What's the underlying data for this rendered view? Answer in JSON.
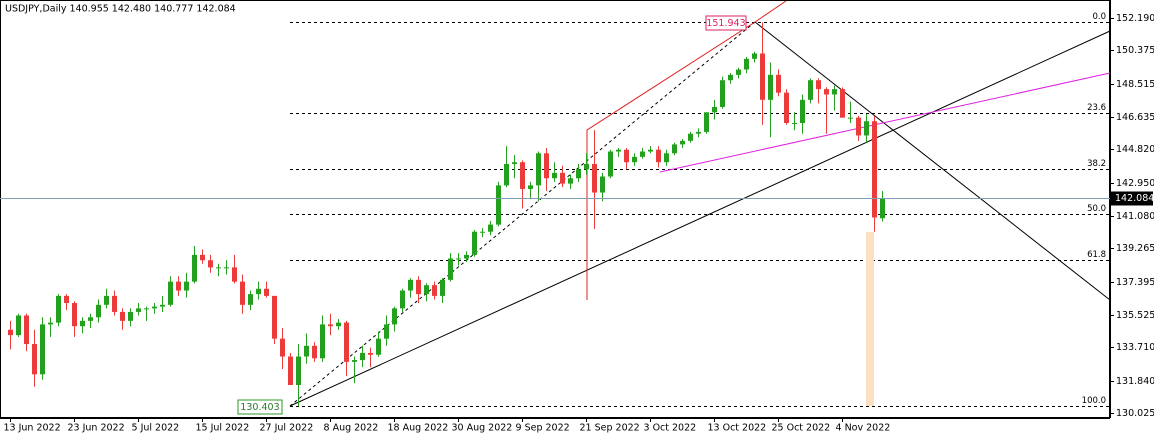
{
  "chart_data": {
    "type": "candlestick",
    "title": "USDJPY,Daily  140.955 142.480 140.777 142.084",
    "categories": [
      "13 Jun 2022",
      null,
      null,
      null,
      null,
      null,
      null,
      null,
      "23 Jun 2022",
      null,
      null,
      null,
      null,
      null,
      null,
      null,
      "5 Jul 2022",
      null,
      null,
      null,
      null,
      null,
      null,
      null,
      "15 Jul 2022",
      null,
      null,
      null,
      null,
      null,
      null,
      null,
      "27 Jul 2022",
      null,
      null,
      null,
      null,
      null,
      null,
      null,
      "8 Aug 2022",
      null,
      null,
      null,
      null,
      null,
      null,
      null,
      "18 Aug 2022",
      null,
      null,
      null,
      null,
      null,
      null,
      null,
      "30 Aug 2022",
      null,
      null,
      null,
      null,
      null,
      null,
      null,
      "9 Sep 2022",
      null,
      null,
      null,
      null,
      null,
      null,
      null,
      "21 Sep 2022",
      null,
      null,
      null,
      null,
      null,
      null,
      null,
      "3 Oct 2022",
      null,
      null,
      null,
      null,
      null,
      null,
      null,
      "13 Oct 2022",
      null,
      null,
      null,
      null,
      null,
      null,
      null,
      "25 Oct 2022",
      null,
      null,
      null,
      null,
      null,
      null,
      null,
      "4 Nov 2022",
      null,
      null,
      null,
      null,
      null
    ],
    "open": [
      134.7,
      134.4,
      135.5,
      133.9,
      132.2,
      135.0,
      135.1,
      136.6,
      136.2,
      134.9,
      135.2,
      135.4,
      136.1,
      136.6,
      135.7,
      135.2,
      135.7,
      135.9,
      135.9,
      136.0,
      136.1,
      137.4,
      136.9,
      137.4,
      138.9,
      138.6,
      138.2,
      138.2,
      138.2,
      137.4,
      136.1,
      136.7,
      137.0,
      136.6,
      134.2,
      133.2,
      131.6,
      133.2,
      133.8,
      133.1,
      135.0,
      134.9,
      135.1,
      132.9,
      133.0,
      133.4,
      133.3,
      134.2,
      135.0,
      135.9,
      136.9,
      137.5,
      136.7,
      137.2,
      136.6,
      137.5,
      138.7,
      138.7,
      138.9,
      140.2,
      140.2,
      140.6,
      142.8,
      144.0,
      144.1,
      142.6,
      142.8,
      144.6,
      143.2,
      143.5,
      142.9,
      143.2,
      143.7,
      144.0,
      142.4,
      143.3,
      144.7,
      144.8,
      144.1,
      144.4,
      144.7,
      144.8,
      144.1,
      144.6,
      145.1,
      145.3,
      145.7,
      145.8,
      146.9,
      147.2,
      148.7,
      149.0,
      149.3,
      149.9,
      150.2,
      147.6,
      149.0,
      148.0,
      146.3,
      146.3,
      147.6,
      148.7,
      148.2,
      147.9,
      148.2,
      146.6,
      146.6,
      145.6,
      146.4,
      140.955
    ],
    "high": [
      135.2,
      135.6,
      135.6,
      134.7,
      135.4,
      135.4,
      136.7,
      136.7,
      136.3,
      135.4,
      135.6,
      136.4,
      137.0,
      136.9,
      135.9,
      135.9,
      136.2,
      136.0,
      136.2,
      136.6,
      137.7,
      137.7,
      137.9,
      139.4,
      139.2,
      138.9,
      138.4,
      138.6,
      138.9,
      137.8,
      136.9,
      137.4,
      137.4,
      136.6,
      134.8,
      133.4,
      133.9,
      134.5,
      134.0,
      135.5,
      135.6,
      135.3,
      135.2,
      133.2,
      133.8,
      133.7,
      134.6,
      135.5,
      136.0,
      137.0,
      137.6,
      137.7,
      137.3,
      137.4,
      137.6,
      139.0,
      139.0,
      139.1,
      140.3,
      140.4,
      140.8,
      143.0,
      145.0,
      144.5,
      144.2,
      143.0,
      144.7,
      144.9,
      144.1,
      143.9,
      143.4,
      144.0,
      144.6,
      145.9,
      143.5,
      144.8,
      144.9,
      144.9,
      144.6,
      144.9,
      145.0,
      145.0,
      144.8,
      145.2,
      145.4,
      145.8,
      146.0,
      146.9,
      147.6,
      148.9,
      149.1,
      149.4,
      150.0,
      150.3,
      151.943,
      149.7,
      149.3,
      148.2,
      146.9,
      147.9,
      148.8,
      148.8,
      148.3,
      148.4,
      148.3,
      147.5,
      146.7,
      146.8,
      146.7,
      142.48
    ],
    "low": [
      133.6,
      134.3,
      133.5,
      131.5,
      131.9,
      134.3,
      134.9,
      135.8,
      134.3,
      134.5,
      134.8,
      135.1,
      135.9,
      135.5,
      134.7,
      134.9,
      135.5,
      135.2,
      135.6,
      135.7,
      136.0,
      136.6,
      136.5,
      137.3,
      138.4,
      137.9,
      137.7,
      137.8,
      137.3,
      135.6,
      135.8,
      136.4,
      136.5,
      133.9,
      132.5,
      131.6,
      130.403,
      132.8,
      132.9,
      132.9,
      134.4,
      134.7,
      132.1,
      131.7,
      132.6,
      132.6,
      133.2,
      133.8,
      134.6,
      135.7,
      136.5,
      136.2,
      136.3,
      136.4,
      136.2,
      137.4,
      138.3,
      138.5,
      138.8,
      139.9,
      140.0,
      140.5,
      142.7,
      143.2,
      141.5,
      142.1,
      141.9,
      142.5,
      143.0,
      142.7,
      142.6,
      143.0,
      143.4,
      140.35,
      141.9,
      143.2,
      144.4,
      143.7,
      143.9,
      144.3,
      144.6,
      143.8,
      143.9,
      144.5,
      144.9,
      145.2,
      145.5,
      145.7,
      146.5,
      147.1,
      148.5,
      148.8,
      149.1,
      149.7,
      146.2,
      145.5,
      147.8,
      146.2,
      145.9,
      145.7,
      147.4,
      147.4,
      145.7,
      147.0,
      146.6,
      146.3,
      145.3,
      145.2,
      140.2,
      140.777
    ],
    "close": [
      134.4,
      135.5,
      133.9,
      132.2,
      135.0,
      135.1,
      136.6,
      136.2,
      134.9,
      135.2,
      135.4,
      136.1,
      136.6,
      135.7,
      135.2,
      135.7,
      135.9,
      135.9,
      136.0,
      136.1,
      137.4,
      136.9,
      137.4,
      138.9,
      138.6,
      138.2,
      138.2,
      138.2,
      137.4,
      136.1,
      136.7,
      137.0,
      136.6,
      134.2,
      133.2,
      131.6,
      133.2,
      133.8,
      133.1,
      135.0,
      134.9,
      135.1,
      132.9,
      133.0,
      133.4,
      133.3,
      134.2,
      135.0,
      135.9,
      136.9,
      137.5,
      136.7,
      137.2,
      136.6,
      137.5,
      138.7,
      138.7,
      138.9,
      140.2,
      140.2,
      140.6,
      142.8,
      144.0,
      144.1,
      142.6,
      142.8,
      144.6,
      143.2,
      143.5,
      142.9,
      143.2,
      143.7,
      144.0,
      142.4,
      143.3,
      144.7,
      144.8,
      144.1,
      144.4,
      144.7,
      144.8,
      144.1,
      144.6,
      145.1,
      145.3,
      145.7,
      145.8,
      146.9,
      147.2,
      148.7,
      149.0,
      149.3,
      149.9,
      150.2,
      147.6,
      149.0,
      148.0,
      146.3,
      146.3,
      147.6,
      148.7,
      148.2,
      147.9,
      148.2,
      146.6,
      146.6,
      145.6,
      146.4,
      141.0,
      142.084
    ],
    "up_color": "#22a01e",
    "down_color": "#ec3b3b",
    "ylim": [
      129.75,
      153.2
    ],
    "yticks": [
      {
        "value": 152.19,
        "label": "152.190"
      },
      150.375,
      148.515,
      146.635,
      {
        "value": 144.82,
        "label": "144.820"
      },
      {
        "value": 142.95,
        "label": "142.950"
      },
      {
        "value": 141.08,
        "label": "141.080"
      },
      139.265,
      137.395,
      135.525,
      {
        "value": 133.71,
        "label": "133.710"
      },
      {
        "value": 131.84,
        "label": "131.840"
      },
      130.025
    ],
    "fibonacci": {
      "high": 151.943,
      "low": 130.403,
      "levels": [
        {
          "label": "0.0",
          "price": 151.943
        },
        {
          "label": "23.6",
          "price": 146.86
        },
        {
          "label": "38.2",
          "price": 143.715
        },
        {
          "label": "50.0",
          "price": 141.173
        },
        {
          "label": "61.8",
          "price": 138.63
        },
        {
          "label": "100.0",
          "price": 130.403
        }
      ]
    }
  }
}
